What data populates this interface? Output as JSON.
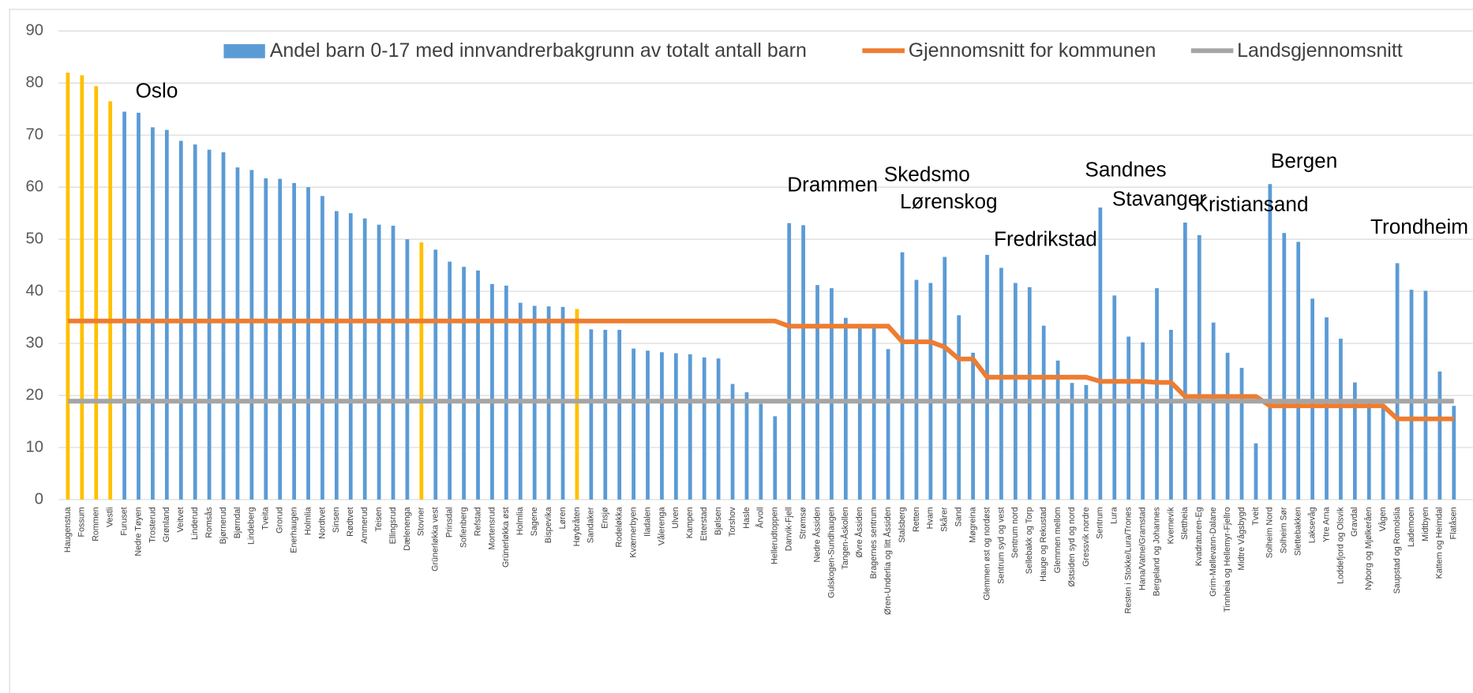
{
  "chart_data": {
    "type": "bar",
    "categories": [
      "Haugenstua",
      "Fossum",
      "Rommen",
      "Vestli",
      "Furuset",
      "Nedre Tøyen",
      "Trosterud",
      "Grønland",
      "Veitvet",
      "Linderud",
      "Romsås",
      "Bjørnerud",
      "Bjørndal",
      "Lindeberg",
      "Tveita",
      "Grorud",
      "Enerhaugen",
      "Holmlia",
      "Nordtvet",
      "Sinsen",
      "Rødtvet",
      "Ammerud",
      "Teisen",
      "Ellingsrud",
      "Dælenenga",
      "Stovner",
      "Grünerløkka vest",
      "Prinsdal",
      "Sofienberg",
      "Refstad",
      "Mortensrud",
      "Grünerløkka øst",
      "Holmlia",
      "Sagene",
      "Bispevika",
      "Løren",
      "Høybråten",
      "Sandaker",
      "Ensjø",
      "Rodeløkka",
      "Kværnerbyen",
      "Iladalen",
      "Vålerenga",
      "Ulven",
      "Kampen",
      "Etterstad",
      "Bjølsen",
      "Torshov",
      "Hasle",
      "Årvoll",
      "Hellerudtoppen",
      "Danvik-Fjell",
      "Strømsø",
      "Nedre Åssiden",
      "Gulskogen-Sundhaugen",
      "Tangen-Åskollen",
      "Øvre Åssiden",
      "Bragernes sentrum",
      "Øren-Underlia og litt Åssiden",
      "Stalsberg",
      "Retten",
      "Hvam",
      "Skårer",
      "Sand",
      "Møgreina",
      "Glemmen øst og nordøst",
      "Sentrum syd og vest",
      "Sentrum nord",
      "Sellebakk og Torp",
      "Hauge og Rekustad",
      "Glemmen mellom",
      "Østsiden syd og nord",
      "Gressvik nordre",
      "Sentrum",
      "Lura",
      "Resten i Stokke/Lura/Trones",
      "Hana/Vatne/Gramstad",
      "Bergeland og Johannes",
      "Kvernevik",
      "Slettheia",
      "Kvadraturen-Eg",
      "Grim-Møllevann-Dalane",
      "Tinnheia og Hellemyr-Fjellro",
      "Midtre Vågsbygd",
      "Tveit",
      "Solheim Nord",
      "Solheim Sør",
      "Slettebakken",
      "Laksevåg",
      "Ytre Arna",
      "Loddefjord og Olsvik",
      "Gravdal",
      "Nyborg og Mjølkeråen",
      "Vågen",
      "Saupstad og Romolslia",
      "Lademoen",
      "Midtbyen",
      "Kattem og Heimdal",
      "Flatåsen"
    ],
    "series": [
      {
        "name": "Andel barn 0-17 med innvandrerbakgrunn av totalt antall barn",
        "type": "bar",
        "color": "#5b9bd5",
        "colors": [
          "#ffc000",
          "#ffc000",
          "#ffc000",
          "#ffc000",
          "#5b9bd5",
          "#5b9bd5",
          "#5b9bd5",
          "#5b9bd5",
          "#5b9bd5",
          "#5b9bd5",
          "#5b9bd5",
          "#5b9bd5",
          "#5b9bd5",
          "#5b9bd5",
          "#5b9bd5",
          "#5b9bd5",
          "#5b9bd5",
          "#5b9bd5",
          "#5b9bd5",
          "#5b9bd5",
          "#5b9bd5",
          "#5b9bd5",
          "#5b9bd5",
          "#5b9bd5",
          "#5b9bd5",
          "#ffc000",
          "#5b9bd5",
          "#5b9bd5",
          "#5b9bd5",
          "#5b9bd5",
          "#5b9bd5",
          "#5b9bd5",
          "#5b9bd5",
          "#5b9bd5",
          "#5b9bd5",
          "#5b9bd5",
          "#ffc000",
          "#5b9bd5",
          "#5b9bd5",
          "#5b9bd5",
          "#5b9bd5",
          "#5b9bd5",
          "#5b9bd5",
          "#5b9bd5",
          "#5b9bd5",
          "#5b9bd5",
          "#5b9bd5",
          "#5b9bd5",
          "#5b9bd5",
          "#5b9bd5",
          "#5b9bd5",
          "#5b9bd5",
          "#5b9bd5",
          "#5b9bd5",
          "#5b9bd5",
          "#5b9bd5",
          "#5b9bd5",
          "#5b9bd5",
          "#5b9bd5",
          "#5b9bd5",
          "#5b9bd5",
          "#5b9bd5",
          "#5b9bd5",
          "#5b9bd5",
          "#5b9bd5",
          "#5b9bd5",
          "#5b9bd5",
          "#5b9bd5",
          "#5b9bd5",
          "#5b9bd5",
          "#5b9bd5",
          "#5b9bd5",
          "#5b9bd5",
          "#5b9bd5",
          "#5b9bd5",
          "#5b9bd5",
          "#5b9bd5",
          "#5b9bd5",
          "#5b9bd5",
          "#5b9bd5",
          "#5b9bd5",
          "#5b9bd5",
          "#5b9bd5",
          "#5b9bd5",
          "#5b9bd5",
          "#5b9bd5",
          "#5b9bd5",
          "#5b9bd5",
          "#5b9bd5",
          "#5b9bd5",
          "#5b9bd5",
          "#5b9bd5",
          "#5b9bd5",
          "#5b9bd5",
          "#5b9bd5",
          "#5b9bd5",
          "#5b9bd5",
          "#5b9bd5",
          "#5b9bd5"
        ],
        "values": [
          82,
          81.5,
          79.4,
          76.5,
          74.5,
          74.3,
          71.5,
          71,
          68.9,
          68.2,
          67.2,
          66.7,
          63.8,
          63.3,
          61.7,
          61.6,
          60.8,
          60,
          58.3,
          55.4,
          55,
          54,
          52.8,
          52.6,
          50,
          49.4,
          48,
          45.7,
          44.7,
          44,
          41.4,
          41.1,
          37.8,
          37.2,
          37.1,
          37,
          36.6,
          32.7,
          32.6,
          32.6,
          29,
          28.6,
          28.3,
          28.1,
          27.9,
          27.3,
          27.1,
          22.2,
          20.6,
          18.4,
          16,
          53.1,
          52.7,
          41.2,
          40.6,
          34.9,
          33.5,
          33,
          28.9,
          47.5,
          42.2,
          41.6,
          46.6,
          35.4,
          28.2,
          47,
          44.5,
          41.6,
          40.8,
          33.4,
          26.7,
          22.4,
          22,
          56.1,
          39.2,
          31.3,
          30.2,
          40.6,
          32.6,
          53.2,
          50.8,
          34,
          28.2,
          25.3,
          10.8,
          60.6,
          51.2,
          49.5,
          38.6,
          35,
          30.9,
          22.5,
          18.5,
          18,
          45.4,
          40.3,
          40.1,
          24.6,
          18
        ]
      },
      {
        "name": "Gjennomsnitt for kommunen",
        "type": "line",
        "color": "#ed7d31",
        "values": [
          34.3,
          34.3,
          34.3,
          34.3,
          34.3,
          34.3,
          34.3,
          34.3,
          34.3,
          34.3,
          34.3,
          34.3,
          34.3,
          34.3,
          34.3,
          34.3,
          34.3,
          34.3,
          34.3,
          34.3,
          34.3,
          34.3,
          34.3,
          34.3,
          34.3,
          34.3,
          34.3,
          34.3,
          34.3,
          34.3,
          34.3,
          34.3,
          34.3,
          34.3,
          34.3,
          34.3,
          34.3,
          34.3,
          34.3,
          34.3,
          34.3,
          34.3,
          34.3,
          34.3,
          34.3,
          34.3,
          34.3,
          34.3,
          34.3,
          34.3,
          34.3,
          33.3,
          33.3,
          33.3,
          33.3,
          33.3,
          33.3,
          33.3,
          33.3,
          30.3,
          30.3,
          30.3,
          29.3,
          27,
          27,
          23.5,
          23.5,
          23.5,
          23.5,
          23.5,
          23.5,
          23.5,
          23.5,
          22.7,
          22.7,
          22.7,
          22.7,
          22.5,
          22.5,
          19.8,
          19.8,
          19.8,
          19.8,
          19.8,
          19.8,
          18,
          18,
          18,
          18,
          18,
          18,
          18,
          18,
          18,
          15.5,
          15.5,
          15.5,
          15.5,
          15.5
        ]
      },
      {
        "name": "Landsgjennomsnitt",
        "type": "line",
        "color": "#a5a5a5",
        "values": [
          18.9,
          18.9,
          18.9,
          18.9,
          18.9,
          18.9,
          18.9,
          18.9,
          18.9,
          18.9,
          18.9,
          18.9,
          18.9,
          18.9,
          18.9,
          18.9,
          18.9,
          18.9,
          18.9,
          18.9,
          18.9,
          18.9,
          18.9,
          18.9,
          18.9,
          18.9,
          18.9,
          18.9,
          18.9,
          18.9,
          18.9,
          18.9,
          18.9,
          18.9,
          18.9,
          18.9,
          18.9,
          18.9,
          18.9,
          18.9,
          18.9,
          18.9,
          18.9,
          18.9,
          18.9,
          18.9,
          18.9,
          18.9,
          18.9,
          18.9,
          18.9,
          18.9,
          18.9,
          18.9,
          18.9,
          18.9,
          18.9,
          18.9,
          18.9,
          18.9,
          18.9,
          18.9,
          18.9,
          18.9,
          18.9,
          18.9,
          18.9,
          18.9,
          18.9,
          18.9,
          18.9,
          18.9,
          18.9,
          18.9,
          18.9,
          18.9,
          18.9,
          18.9,
          18.9,
          18.9,
          18.9,
          18.9,
          18.9,
          18.9,
          18.9,
          18.9,
          18.9,
          18.9,
          18.9,
          18.9,
          18.9,
          18.9,
          18.9,
          18.9,
          18.9,
          18.9,
          18.9,
          18.9,
          18.9
        ]
      }
    ],
    "annotations": [
      "Oslo",
      "Drammen",
      "Skedsmo",
      "Lørenskog",
      "Fredrikstad",
      "Sandnes",
      "Stavanger",
      "Kristiansand",
      "Bergen",
      "Trondheim"
    ],
    "ylim": [
      0,
      90
    ],
    "yticks": [
      0,
      10,
      20,
      30,
      40,
      50,
      60,
      70,
      80,
      90
    ],
    "grid": true,
    "legend": "top"
  }
}
